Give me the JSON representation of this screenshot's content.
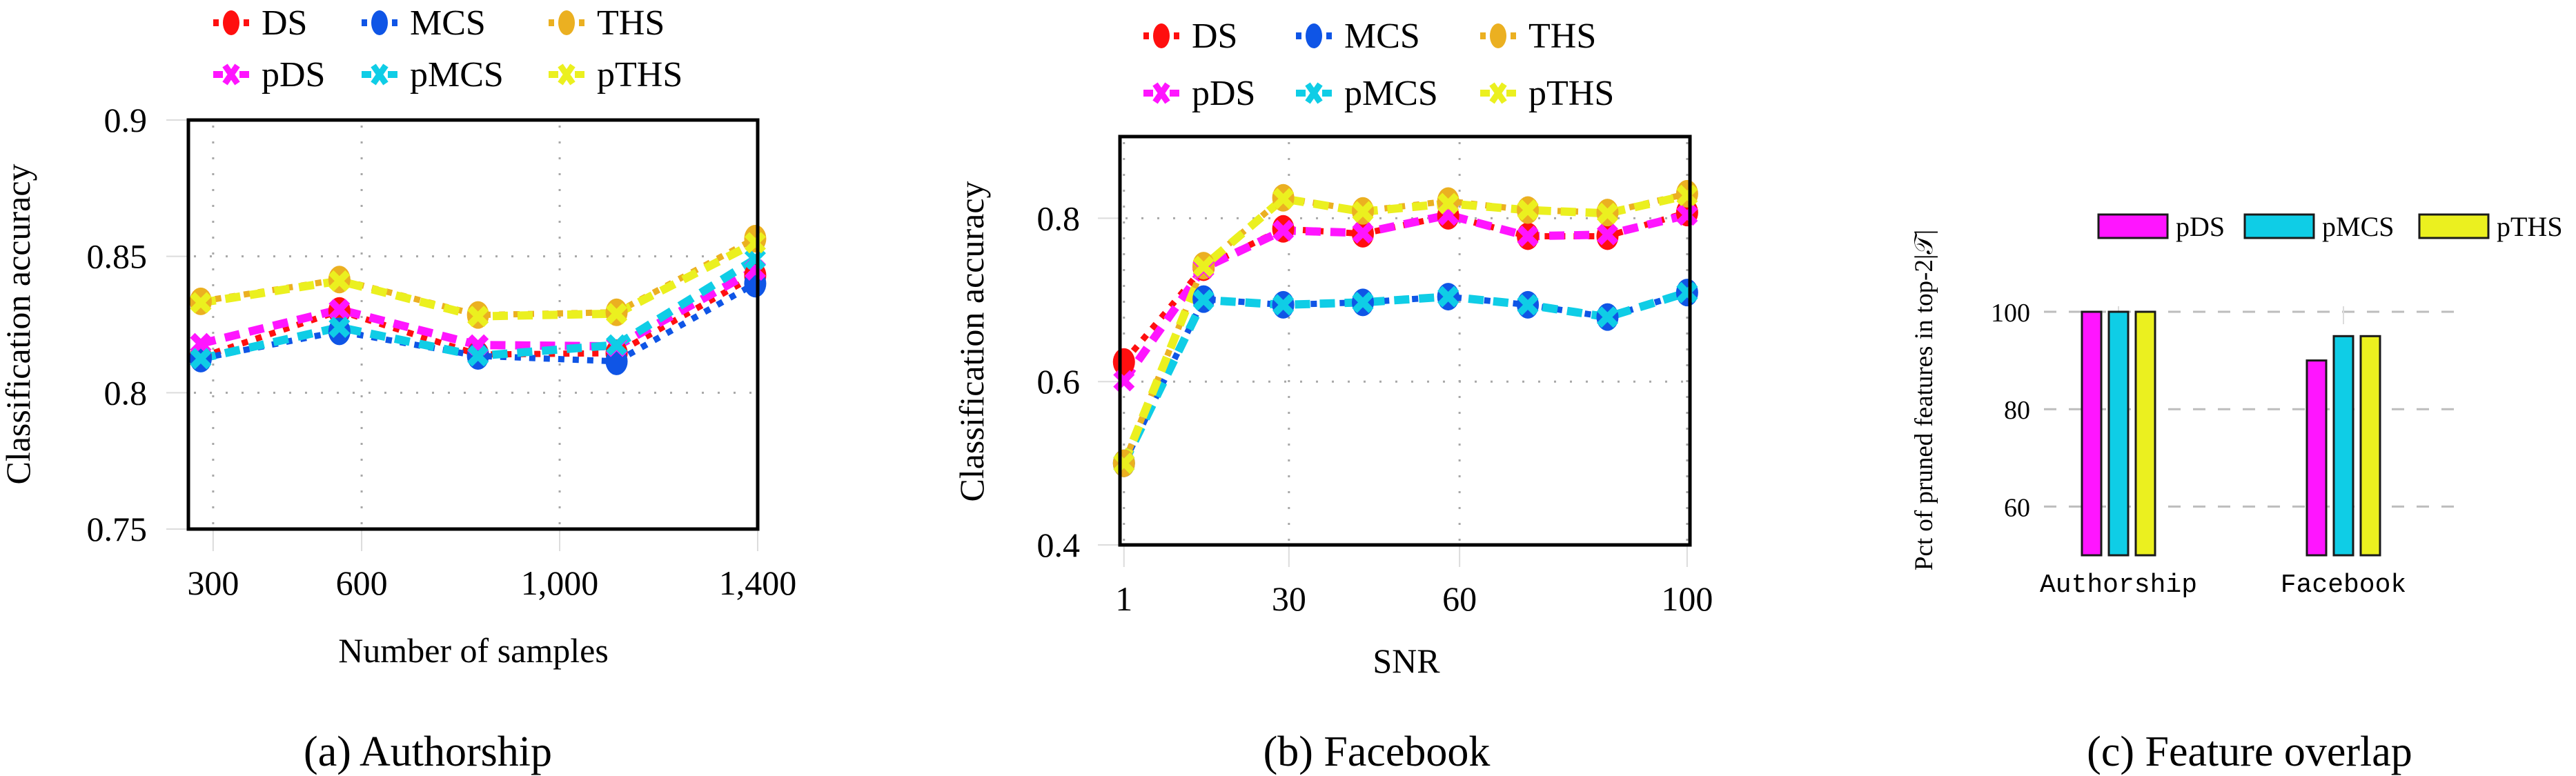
{
  "figure": {
    "captions": [
      "(a) Authorship",
      "(b) Facebook",
      "(c) Feature overlap"
    ]
  },
  "series_styles": {
    "DS": {
      "color": "#ff0f0f",
      "marker": "circle",
      "dash": "dotted"
    },
    "MCS": {
      "color": "#0f55e6",
      "marker": "circle",
      "dash": "dotted"
    },
    "THS": {
      "color": "#ebb021",
      "marker": "circle",
      "dash": "dotted"
    },
    "pDS": {
      "color": "#ff15ff",
      "marker": "cross",
      "dash": "dashed"
    },
    "pMCS": {
      "color": "#0fcde6",
      "marker": "cross",
      "dash": "dashed"
    },
    "pTHS": {
      "color": "#ebf01f",
      "marker": "cross",
      "dash": "dashed"
    }
  },
  "chart_data": [
    {
      "id": "authorship",
      "type": "line",
      "title": "(a) Authorship",
      "xlabel": "Number of samples",
      "ylabel": "Classification accuracy",
      "xlim": [
        250,
        1400
      ],
      "ylim": [
        0.75,
        0.9
      ],
      "xticks": [
        300,
        600,
        1000,
        1400
      ],
      "xtick_labels": [
        "300",
        "600",
        "1,000",
        "1,400"
      ],
      "yticks": [
        0.75,
        0.8,
        0.85,
        0.9
      ],
      "ytick_labels": [
        "0.75",
        "0.8",
        "0.85",
        "0.9"
      ],
      "grid": true,
      "legend": {
        "placement": "top",
        "entries": [
          "DS",
          "MCS",
          "THS",
          "pDS",
          "pMCS",
          "pTHS"
        ]
      },
      "x": [
        275,
        555,
        835,
        1115,
        1395
      ],
      "series": [
        {
          "name": "DS",
          "values": [
            0.813,
            0.83,
            0.814,
            0.8145,
            0.843
          ]
        },
        {
          "name": "MCS",
          "values": [
            0.8125,
            0.8225,
            0.8135,
            0.8115,
            0.84
          ]
        },
        {
          "name": "THS",
          "values": [
            0.8335,
            0.8415,
            0.8285,
            0.8295,
            0.8565
          ]
        },
        {
          "name": "pDS",
          "values": [
            0.818,
            0.8305,
            0.8175,
            0.817,
            0.845
          ]
        },
        {
          "name": "pMCS",
          "values": [
            0.8125,
            0.824,
            0.8135,
            0.8175,
            0.849
          ]
        },
        {
          "name": "pTHS",
          "values": [
            0.833,
            0.841,
            0.828,
            0.829,
            0.855
          ]
        }
      ]
    },
    {
      "id": "facebook",
      "type": "line",
      "title": "(b) Facebook",
      "xlabel": "SNR",
      "ylabel": "Classification accuracy",
      "xlim": [
        0.3,
        100.5
      ],
      "ylim": [
        0.4,
        0.9
      ],
      "xticks": [
        1,
        30,
        60,
        100
      ],
      "xtick_labels": [
        "1",
        "30",
        "60",
        "100"
      ],
      "yticks": [
        0.4,
        0.6,
        0.8
      ],
      "ytick_labels": [
        "0.4",
        "0.6",
        "0.8"
      ],
      "grid": true,
      "legend": {
        "placement": "top",
        "entries": [
          "DS",
          "MCS",
          "THS",
          "pDS",
          "pMCS",
          "pTHS"
        ]
      },
      "x": [
        1,
        15,
        29,
        43,
        58,
        72,
        86,
        100
      ],
      "series": [
        {
          "name": "DS",
          "values": [
            0.624,
            0.74,
            0.787,
            0.781,
            0.803,
            0.778,
            0.778,
            0.807
          ]
        },
        {
          "name": "MCS",
          "values": [
            0.5,
            0.701,
            0.694,
            0.697,
            0.704,
            0.694,
            0.679,
            0.709
          ]
        },
        {
          "name": "THS",
          "values": [
            0.5,
            0.742,
            0.825,
            0.809,
            0.821,
            0.81,
            0.807,
            0.83
          ]
        },
        {
          "name": "pDS",
          "values": [
            0.601,
            0.739,
            0.785,
            0.782,
            0.804,
            0.778,
            0.78,
            0.804
          ]
        },
        {
          "name": "pMCS",
          "values": [
            0.5,
            0.7,
            0.694,
            0.697,
            0.704,
            0.694,
            0.679,
            0.709
          ]
        },
        {
          "name": "pTHS",
          "values": [
            0.5,
            0.741,
            0.824,
            0.808,
            0.818,
            0.81,
            0.806,
            0.828
          ]
        }
      ]
    },
    {
      "id": "overlap",
      "type": "bar",
      "title": "(c) Feature overlap",
      "xlabel": "",
      "ylabel": "Pct of pruned features in top-2|𝒯|",
      "ylim": [
        50,
        100
      ],
      "yticks": [
        60,
        80,
        100
      ],
      "ytick_labels": [
        "60",
        "80",
        "100"
      ],
      "grid": true,
      "legend": {
        "placement": "top",
        "entries": [
          "pDS",
          "pMCS",
          "pTHS"
        ]
      },
      "categories": [
        "Authorship",
        "Facebook"
      ],
      "series": [
        {
          "name": "pDS",
          "values": [
            100,
            90
          ]
        },
        {
          "name": "pMCS",
          "values": [
            100,
            95
          ]
        },
        {
          "name": "pTHS",
          "values": [
            100,
            95
          ]
        }
      ]
    }
  ]
}
